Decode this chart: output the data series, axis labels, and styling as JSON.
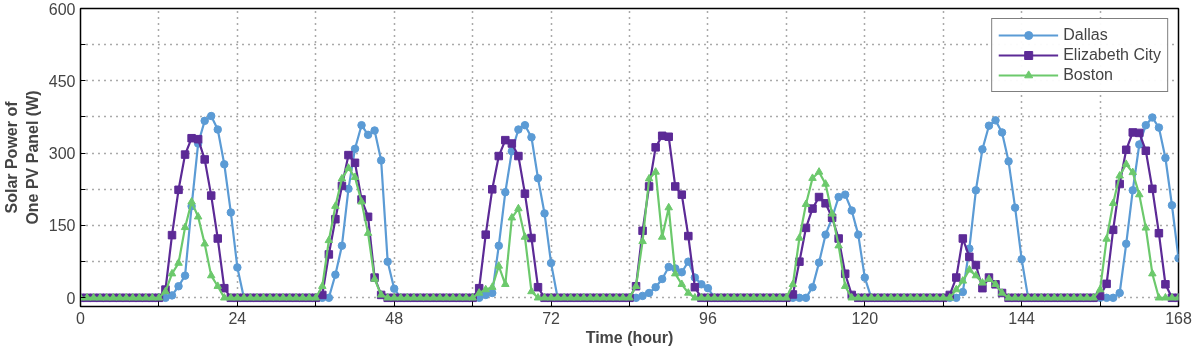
{
  "chart_data": {
    "type": "line",
    "xlabel": "Time (hour)",
    "ylabel": "Solar Power of\nOne PV Panel (W)",
    "x": [
      0,
      1,
      2,
      3,
      4,
      5,
      6,
      7,
      8,
      9,
      10,
      11,
      12,
      13,
      14,
      15,
      16,
      17,
      18,
      19,
      20,
      21,
      22,
      23,
      24,
      25,
      26,
      27,
      28,
      29,
      30,
      31,
      32,
      33,
      34,
      35,
      36,
      37,
      38,
      39,
      40,
      41,
      42,
      43,
      44,
      45,
      46,
      47,
      48,
      49,
      50,
      51,
      52,
      53,
      54,
      55,
      56,
      57,
      58,
      59,
      60,
      61,
      62,
      63,
      64,
      65,
      66,
      67,
      68,
      69,
      70,
      71,
      72,
      73,
      74,
      75,
      76,
      77,
      78,
      79,
      80,
      81,
      82,
      83,
      84,
      85,
      86,
      87,
      88,
      89,
      90,
      91,
      92,
      93,
      94,
      95,
      96,
      97,
      98,
      99,
      100,
      101,
      102,
      103,
      104,
      105,
      106,
      107,
      108,
      109,
      110,
      111,
      112,
      113,
      114,
      115,
      116,
      117,
      118,
      119,
      120,
      121,
      122,
      123,
      124,
      125,
      126,
      127,
      128,
      129,
      130,
      131,
      132,
      133,
      134,
      135,
      136,
      137,
      138,
      139,
      140,
      141,
      142,
      143,
      144,
      145,
      146,
      147,
      148,
      149,
      150,
      151,
      152,
      153,
      154,
      155,
      156,
      157,
      158,
      159,
      160,
      161,
      162,
      163,
      164,
      165,
      166,
      167,
      168
    ],
    "series": [
      {
        "name": "Dallas",
        "color": "#5b9bd5",
        "marker": "circle",
        "values": [
          null,
          null,
          null,
          null,
          null,
          null,
          null,
          null,
          null,
          null,
          null,
          0,
          0,
          0,
          5,
          24,
          46,
          190,
          320,
          367,
          377,
          349,
          277,
          177,
          63,
          0,
          0,
          0,
          0,
          0,
          0,
          0,
          0,
          0,
          0,
          0,
          0,
          0,
          0,
          48,
          108,
          226,
          309,
          358,
          338,
          347,
          285,
          75,
          19,
          0,
          0,
          0,
          0,
          0,
          0,
          0,
          0,
          0,
          0,
          0,
          0,
          0,
          6,
          10,
          108,
          219,
          304,
          349,
          358,
          333,
          248,
          175,
          72,
          0,
          0,
          0,
          0,
          0,
          0,
          0,
          0,
          0,
          0,
          0,
          0,
          0,
          4,
          10,
          22,
          39,
          64,
          61,
          53,
          75,
          42,
          28,
          20,
          0,
          0,
          0,
          0,
          0,
          0,
          0,
          0,
          0,
          0,
          0,
          0,
          0,
          0,
          0,
          22,
          73,
          131,
          166,
          209,
          214,
          181,
          131,
          42,
          0,
          0,
          0,
          0,
          0,
          0,
          0,
          0,
          0,
          0,
          0,
          0,
          0,
          0,
          12,
          102,
          223,
          308,
          357,
          368,
          343,
          283,
          187,
          80,
          0,
          0,
          0,
          0,
          0,
          0,
          0,
          0,
          0,
          0,
          0,
          0,
          0,
          0,
          10,
          112,
          223,
          318,
          358,
          374,
          353,
          290,
          192,
          82
        ]
      },
      {
        "name": "Elizabeth City",
        "color": "#5c2a96",
        "marker": "square",
        "values": [
          0,
          0,
          0,
          0,
          0,
          0,
          0,
          0,
          0,
          0,
          0,
          0,
          0,
          17,
          130,
          224,
          297,
          331,
          329,
          287,
          212,
          123,
          20,
          0,
          0,
          0,
          0,
          0,
          0,
          0,
          0,
          0,
          0,
          0,
          0,
          0,
          0,
          6,
          90,
          163,
          232,
          296,
          280,
          204,
          168,
          42,
          6,
          0,
          0,
          0,
          0,
          0,
          0,
          0,
          0,
          0,
          0,
          0,
          0,
          0,
          0,
          20,
          131,
          225,
          294,
          327,
          320,
          294,
          216,
          124,
          22,
          0,
          0,
          0,
          0,
          0,
          0,
          0,
          0,
          0,
          0,
          0,
          0,
          0,
          0,
          24,
          139,
          231,
          312,
          336,
          334,
          231,
          214,
          128,
          22,
          0,
          0,
          0,
          0,
          0,
          0,
          0,
          0,
          0,
          0,
          0,
          0,
          0,
          0,
          7,
          75,
          145,
          185,
          209,
          196,
          166,
          123,
          50,
          6,
          0,
          0,
          0,
          0,
          0,
          0,
          0,
          0,
          0,
          0,
          0,
          0,
          0,
          0,
          6,
          42,
          123,
          85,
          68,
          20,
          42,
          28,
          10,
          0,
          0,
          0,
          0,
          0,
          0,
          0,
          0,
          0,
          0,
          0,
          0,
          0,
          0,
          4,
          29,
          141,
          236,
          307,
          343,
          342,
          305,
          226,
          134,
          28,
          0,
          0
        ]
      },
      {
        "name": "Boston",
        "color": "#6cc96c",
        "marker": "triangle",
        "values": [
          0,
          0,
          0,
          0,
          0,
          0,
          0,
          0,
          0,
          0,
          0,
          0,
          0,
          13,
          50,
          72,
          146,
          199,
          168,
          112,
          46,
          24,
          0,
          0,
          0,
          0,
          0,
          0,
          0,
          0,
          0,
          0,
          0,
          0,
          0,
          0,
          0,
          24,
          119,
          190,
          247,
          269,
          250,
          199,
          134,
          39,
          6,
          0,
          0,
          0,
          0,
          0,
          0,
          0,
          0,
          0,
          0,
          0,
          0,
          0,
          0,
          10,
          17,
          22,
          66,
          28,
          166,
          185,
          126,
          13,
          0,
          0,
          0,
          0,
          0,
          0,
          0,
          0,
          0,
          0,
          0,
          0,
          0,
          0,
          0,
          24,
          117,
          247,
          261,
          126,
          187,
          50,
          28,
          10,
          0,
          0,
          0,
          0,
          0,
          0,
          0,
          0,
          0,
          0,
          0,
          0,
          0,
          0,
          0,
          28,
          124,
          194,
          248,
          261,
          236,
          174,
          108,
          24,
          0,
          0,
          0,
          0,
          0,
          0,
          0,
          0,
          0,
          0,
          0,
          0,
          0,
          0,
          0,
          0,
          17,
          35,
          58,
          46,
          31,
          39,
          28,
          10,
          0,
          0,
          0,
          0,
          0,
          0,
          0,
          0,
          0,
          0,
          0,
          0,
          0,
          0,
          17,
          122,
          196,
          253,
          277,
          260,
          214,
          145,
          50,
          0,
          0,
          0,
          0
        ]
      }
    ],
    "xlim": [
      0,
      168
    ],
    "ylim": [
      -18,
      600
    ],
    "xticks": [
      0,
      {
        "value": 12,
        "label": null
      },
      24,
      {
        "value": 36,
        "label": null
      },
      48,
      {
        "value": 60,
        "label": null
      },
      72,
      {
        "value": 84,
        "label": null
      },
      96,
      {
        "value": 108,
        "label": null
      },
      120,
      {
        "value": 132,
        "label": null
      },
      144,
      {
        "value": 156,
        "label": null
      },
      168
    ],
    "yticks": [
      0,
      {
        "value": 75,
        "label": null
      },
      150,
      {
        "value": 225,
        "label": null
      },
      300,
      {
        "value": 375,
        "label": null
      },
      450,
      {
        "value": 525,
        "label": null
      },
      600
    ],
    "grid": true,
    "legend": "top right",
    "line_style": "solid"
  }
}
